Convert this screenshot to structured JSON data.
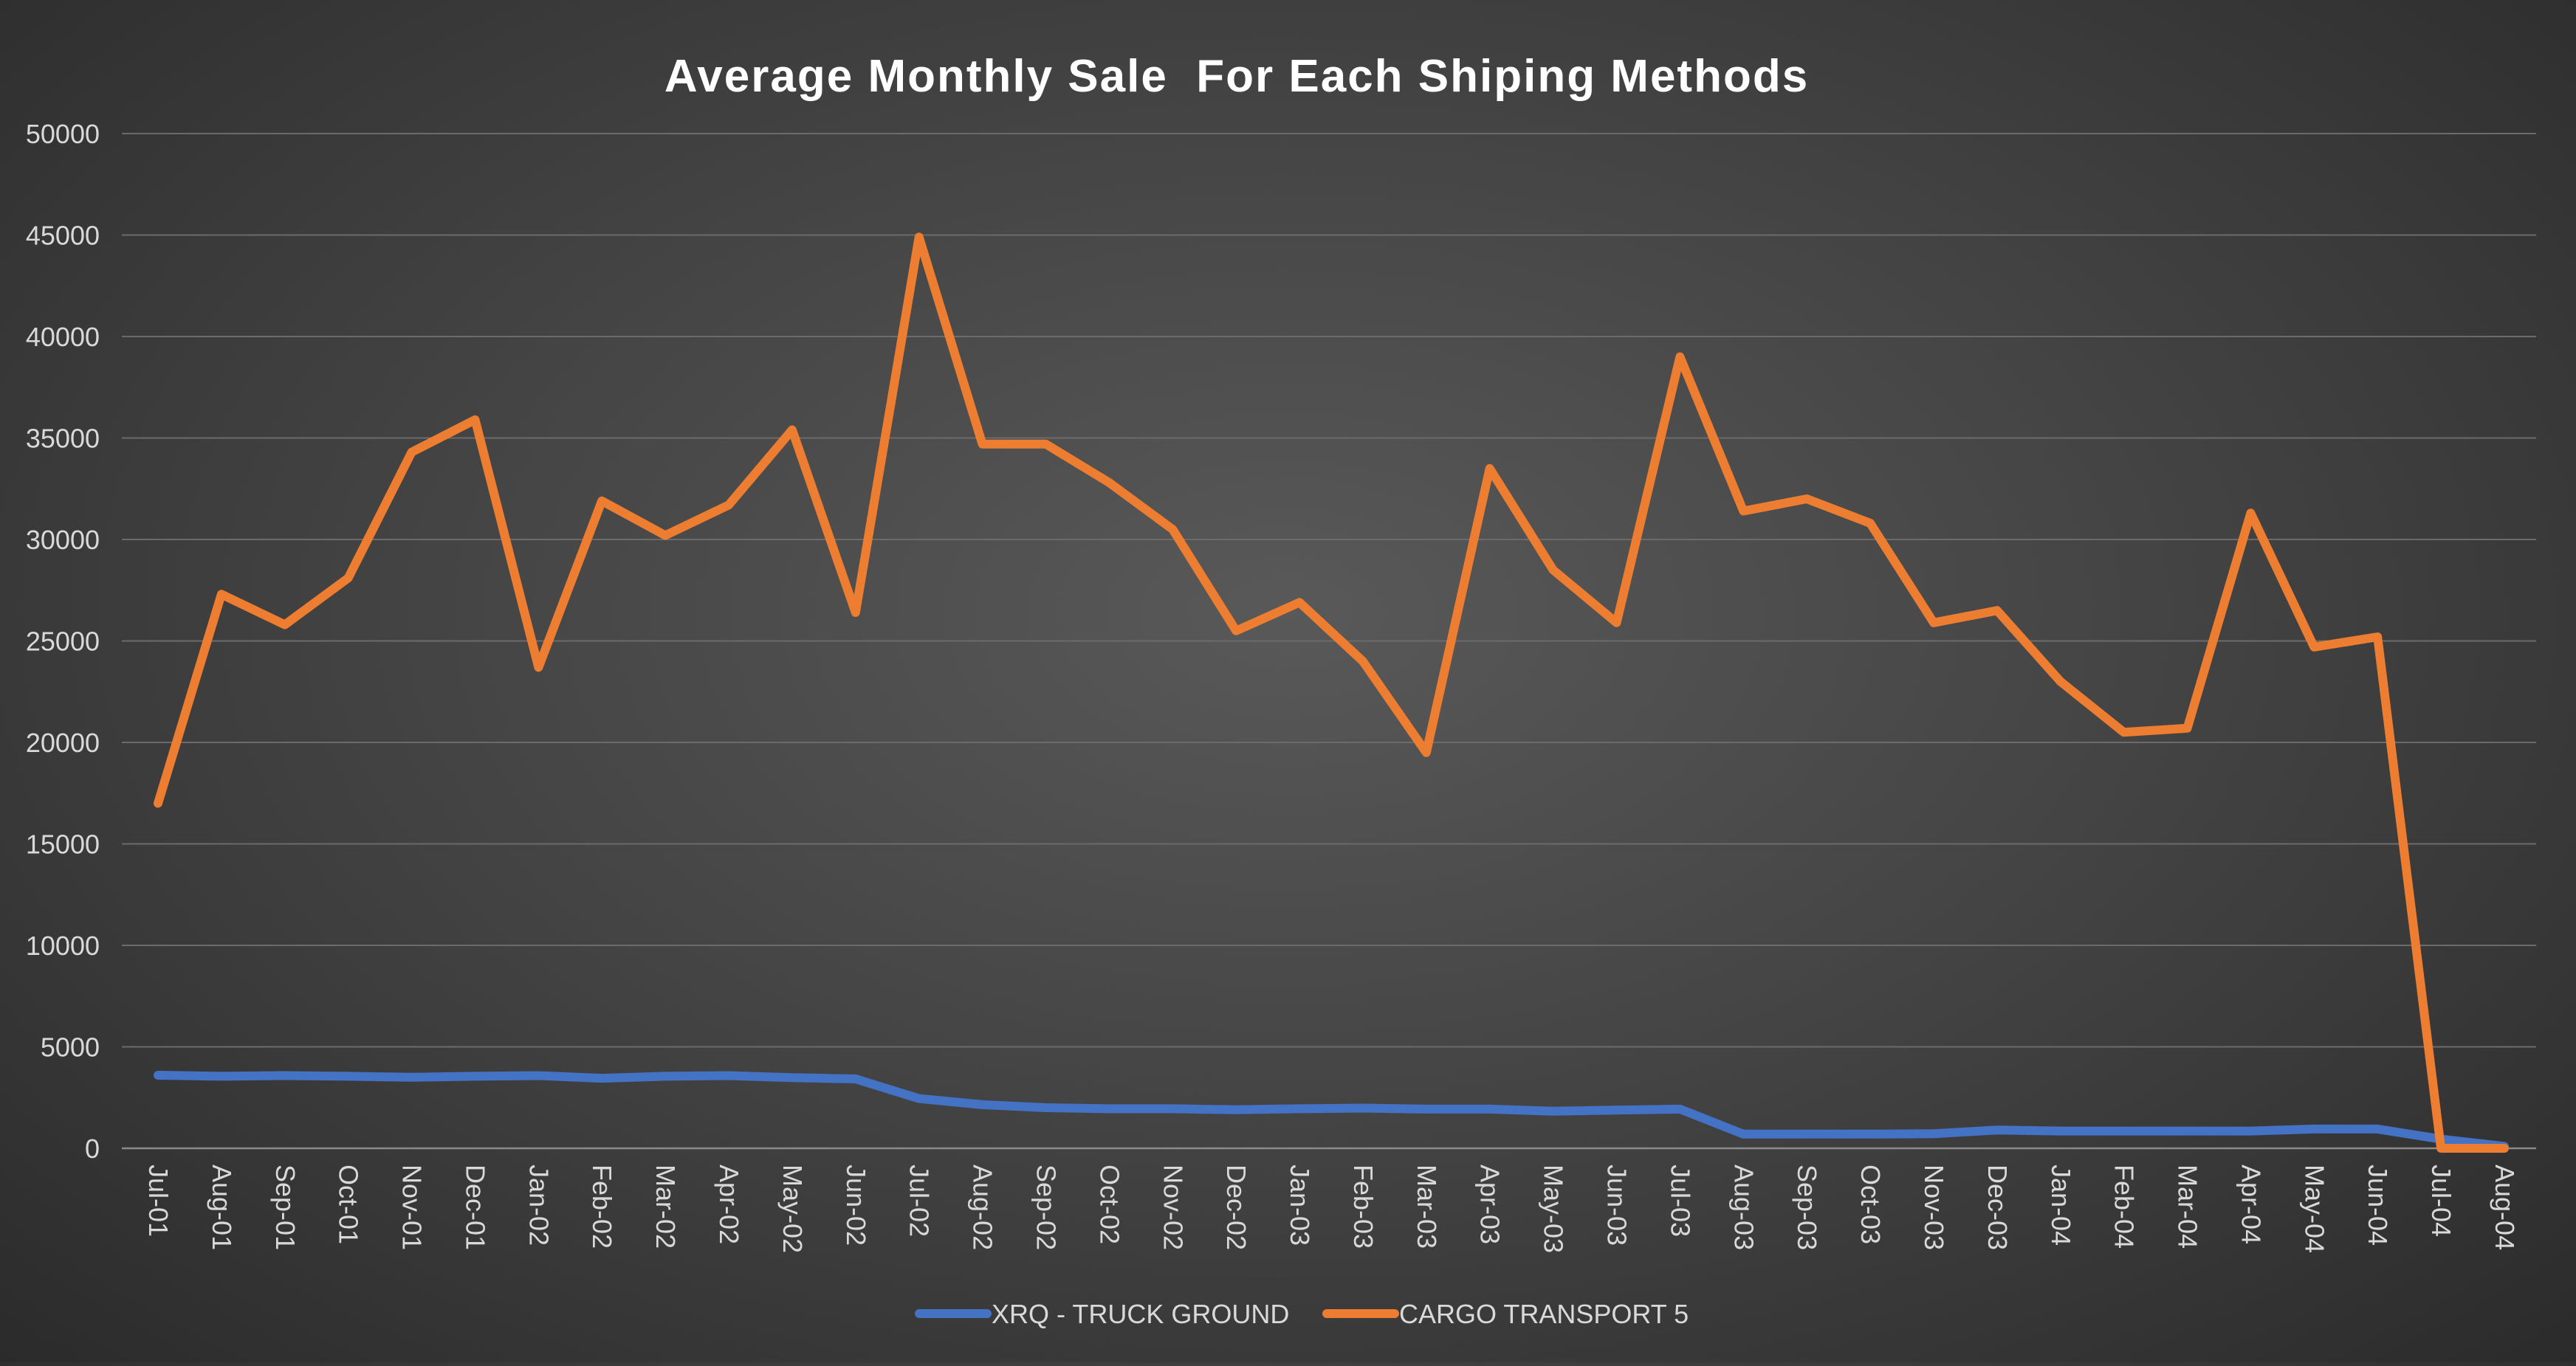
{
  "chart_data": {
    "type": "line",
    "title": "Average Monthly Sale  For Each Shiping Methods",
    "ylim": [
      0,
      50000
    ],
    "yticks": [
      "0",
      "5000",
      "10000",
      "15000",
      "20000",
      "25000",
      "30000",
      "35000",
      "40000",
      "45000",
      "50000"
    ],
    "categories": [
      "Jul-01",
      "Aug-01",
      "Sep-01",
      "Oct-01",
      "Nov-01",
      "Dec-01",
      "Jan-02",
      "Feb-02",
      "Mar-02",
      "Apr-02",
      "May-02",
      "Jun-02",
      "Jul-02",
      "Aug-02",
      "Sep-02",
      "Oct-02",
      "Nov-02",
      "Dec-02",
      "Jan-03",
      "Feb-03",
      "Mar-03",
      "Apr-03",
      "May-03",
      "Jun-03",
      "Jul-03",
      "Aug-03",
      "Sep-03",
      "Oct-03",
      "Nov-03",
      "Dec-03",
      "Jan-04",
      "Feb-04",
      "Mar-04",
      "Apr-04",
      "May-04",
      "Jun-04",
      "Jul-04",
      "Aug-04"
    ],
    "grid": true,
    "legend": "bottom",
    "series": [
      {
        "name": "XRQ - TRUCK GROUND",
        "color": "#4472c4",
        "values": [
          3600,
          3550,
          3580,
          3550,
          3500,
          3550,
          3580,
          3450,
          3550,
          3580,
          3480,
          3420,
          2450,
          2150,
          2000,
          1950,
          1950,
          1900,
          1950,
          1980,
          1930,
          1930,
          1830,
          1880,
          1930,
          700,
          700,
          700,
          720,
          900,
          850,
          850,
          850,
          850,
          950,
          950,
          450,
          100
        ]
      },
      {
        "name": "CARGO TRANSPORT 5",
        "color": "#ed7d31",
        "values": [
          17000,
          27300,
          25800,
          28100,
          34300,
          35900,
          23700,
          31900,
          30200,
          31700,
          35400,
          26400,
          44900,
          34700,
          34700,
          32800,
          30500,
          25500,
          26900,
          24000,
          19500,
          33500,
          28500,
          25900,
          39000,
          31400,
          32000,
          30800,
          25900,
          26500,
          23000,
          20500,
          20700,
          31300,
          24700,
          25200,
          0,
          0
        ]
      }
    ]
  }
}
